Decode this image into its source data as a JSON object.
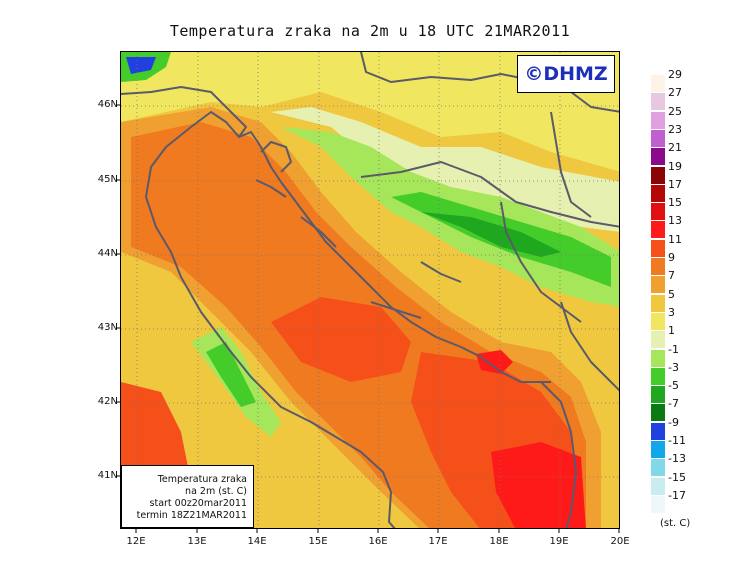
{
  "title": "Temperatura zraka na 2m u 18 UTC 21MAR2011",
  "logo_text": "©DHMZ",
  "info_box": {
    "line1": "Temperatura zraka",
    "line2": "na 2m (st. C)",
    "line3": "start 00z20mar2011",
    "line4": "termin 18Z21MAR2011"
  },
  "y_axis_labels": [
    "46N",
    "45N",
    "44N",
    "43N",
    "42N",
    "41N"
  ],
  "x_axis_labels": [
    "12E",
    "13E",
    "14E",
    "15E",
    "16E",
    "17E",
    "18E",
    "19E",
    "20E"
  ],
  "legend_unit": "(st. C)",
  "legend": [
    {
      "label": "29",
      "color": "#fdf3e6"
    },
    {
      "label": "27",
      "color": "#e8c8e0"
    },
    {
      "label": "25",
      "color": "#e0a0e0"
    },
    {
      "label": "23",
      "color": "#c060d0"
    },
    {
      "label": "21",
      "color": "#8a0a8a"
    },
    {
      "label": "19",
      "color": "#8a0505"
    },
    {
      "label": "17",
      "color": "#b40808"
    },
    {
      "label": "15",
      "color": "#e01010"
    },
    {
      "label": "13",
      "color": "#ff1a1a"
    },
    {
      "label": "11",
      "color": "#f5501a"
    },
    {
      "label": "9",
      "color": "#f07a20"
    },
    {
      "label": "7",
      "color": "#f0a030"
    },
    {
      "label": "5",
      "color": "#f0c840"
    },
    {
      "label": "3",
      "color": "#f0e660"
    },
    {
      "label": "1",
      "color": "#e6f0b0"
    },
    {
      "label": "-1",
      "color": "#a6e65a"
    },
    {
      "label": "-3",
      "color": "#44cc2a"
    },
    {
      "label": "-5",
      "color": "#1fa81f"
    },
    {
      "label": "-7",
      "color": "#0a7a14"
    },
    {
      "label": "-9",
      "color": "#2040e0"
    },
    {
      "label": "-11",
      "color": "#10a8e8"
    },
    {
      "label": "-13",
      "color": "#80d8e8"
    },
    {
      "label": "-15",
      "color": "#c8ecf0"
    },
    {
      "label": "-17",
      "color": "#eef8fb"
    }
  ],
  "colors": {
    "sea_mid": "#f07a20",
    "sea_warm": "#f5501a",
    "hot_spot": "#ff1a1a",
    "coast": "#f0c840",
    "land": "#f0e660",
    "cold_land": "#e6f0b0",
    "mountain": "#44cc2a",
    "cold_peak": "#1fa81f",
    "alpine_cold": "#2040e0",
    "border_line": "#5a5a6a"
  }
}
